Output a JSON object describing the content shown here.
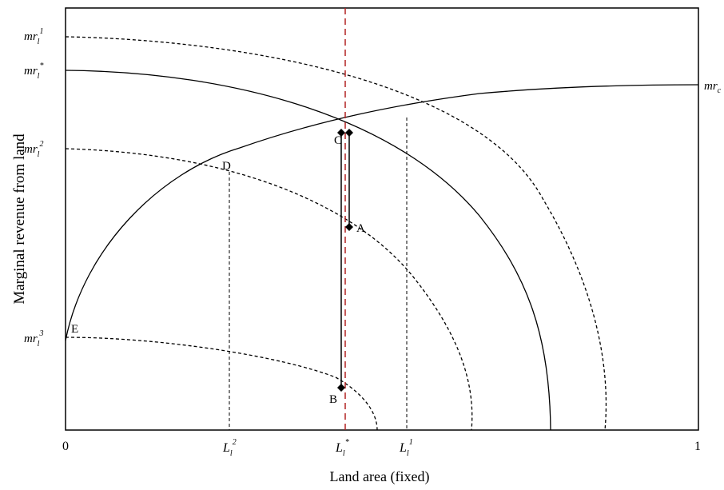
{
  "axes": {
    "x_label": "Land area (fixed)",
    "y_label": "Marginal revenue from land",
    "x_ticks": {
      "zero": "0",
      "one": "1"
    }
  },
  "curves": {
    "mr_c": {
      "base": "mr",
      "sub": "c"
    },
    "mr_l1": {
      "base": "mr",
      "sub": "l",
      "sup": "1"
    },
    "mr_lstar": {
      "base": "mr",
      "sub": "l",
      "sup": "*"
    },
    "mr_l2": {
      "base": "mr",
      "sub": "l",
      "sup": "2"
    },
    "mr_l3": {
      "base": "mr",
      "sub": "l",
      "sup": "3"
    }
  },
  "x_markers": {
    "L_l2": {
      "base": "L",
      "sub": "l",
      "sup": "2"
    },
    "L_lstar": {
      "base": "L",
      "sub": "l",
      "sup": "*"
    },
    "L_l1": {
      "base": "L",
      "sub": "l",
      "sup": "1"
    }
  },
  "points": {
    "A": "A",
    "B": "B",
    "C": "C",
    "D": "D",
    "E": "E"
  },
  "colors": {
    "ink": "#000000",
    "reference_line": "#b22222"
  }
}
